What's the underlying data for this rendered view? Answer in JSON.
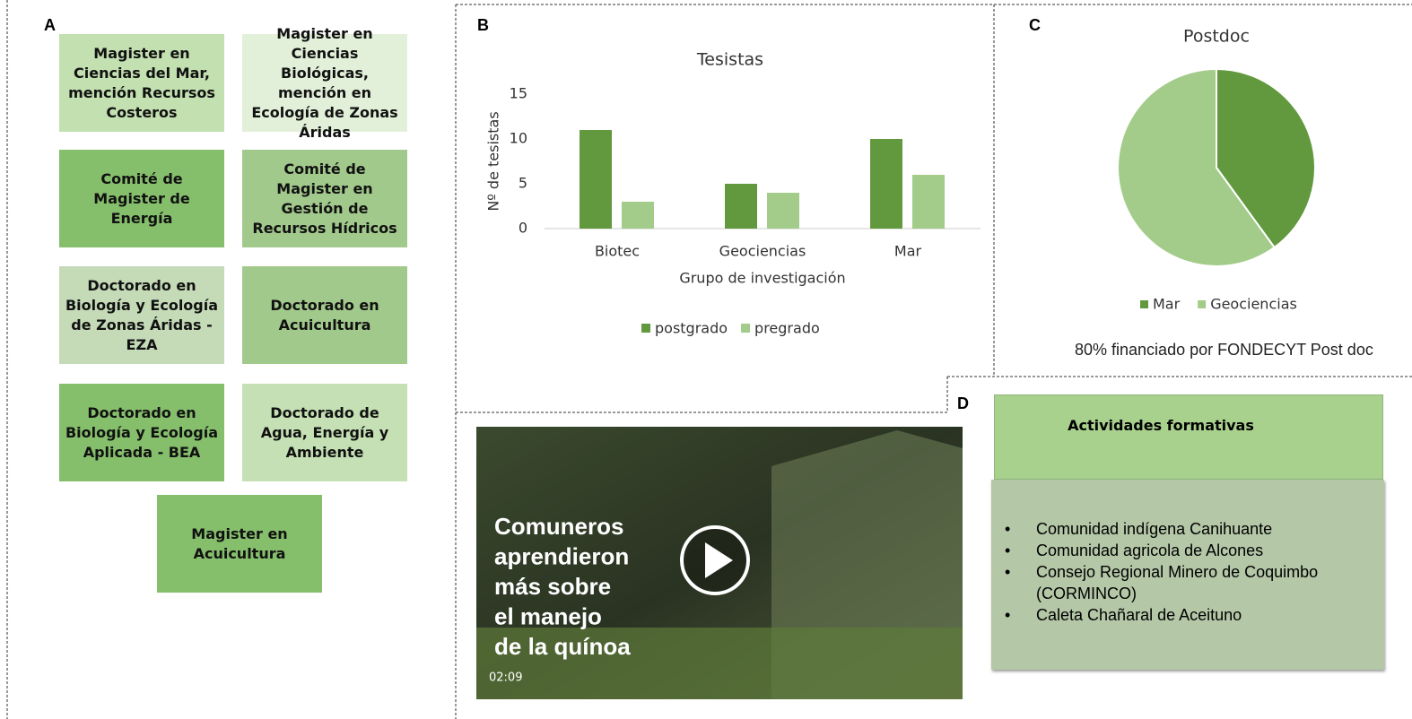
{
  "panel_a": {
    "label": "A",
    "programs": [
      "Magister en Ciencias del Mar, mención Recursos Costeros",
      "Magister en Ciencias Biológicas, mención en Ecología de Zonas Áridas",
      "Comité de Magister de Energía",
      "Comité de Magister en Gestión de Recursos Hídricos",
      "Doctorado en Biología y Ecología de Zonas Áridas - EZA",
      "Doctorado en Acuicultura",
      "Doctorado en Biología y Ecología Aplicada - BEA",
      "Doctorado de Agua, Energía y Ambiente",
      "Magister en Acuicultura"
    ]
  },
  "panel_b": {
    "label": "B"
  },
  "panel_c": {
    "label": "C",
    "note": "80% financiado por FONDECYT Post doc"
  },
  "chart_data": [
    {
      "type": "bar",
      "title": "Tesistas",
      "y_label": "Nº de tesistas",
      "x_label": "Grupo de investigación",
      "categories": [
        "Biotec",
        "Geociencias",
        "Mar"
      ],
      "series": [
        {
          "name": "postgrado",
          "color": "#62993e",
          "values": [
            11,
            5,
            10
          ]
        },
        {
          "name": "pregrado",
          "color": "#a3cc8a",
          "values": [
            3,
            4,
            6
          ]
        }
      ],
      "ylim": [
        0,
        15
      ],
      "yticks": [
        0,
        5,
        10,
        15
      ],
      "grid": false,
      "legend": "bottom"
    },
    {
      "type": "pie",
      "title": "Postdoc",
      "categories": [
        "Mar",
        "Geociencias"
      ],
      "values": [
        40,
        60
      ],
      "colors": [
        "#62993e",
        "#a3cc8a"
      ],
      "legend": "bottom"
    }
  ],
  "video": {
    "lines": [
      "Comuneros",
      "aprendieron",
      "más sobre",
      "el manejo",
      "de la quínoa"
    ],
    "duration": "02:09"
  },
  "panel_d": {
    "label": "D",
    "title": "Actividades formativas",
    "items": [
      "Comunidad indígena Canihuante",
      "Comunidad agricola de Alcones",
      "Consejo Regional Minero de Coquimbo (CORMINCO)",
      "Caleta Chañaral de Aceituno"
    ]
  }
}
